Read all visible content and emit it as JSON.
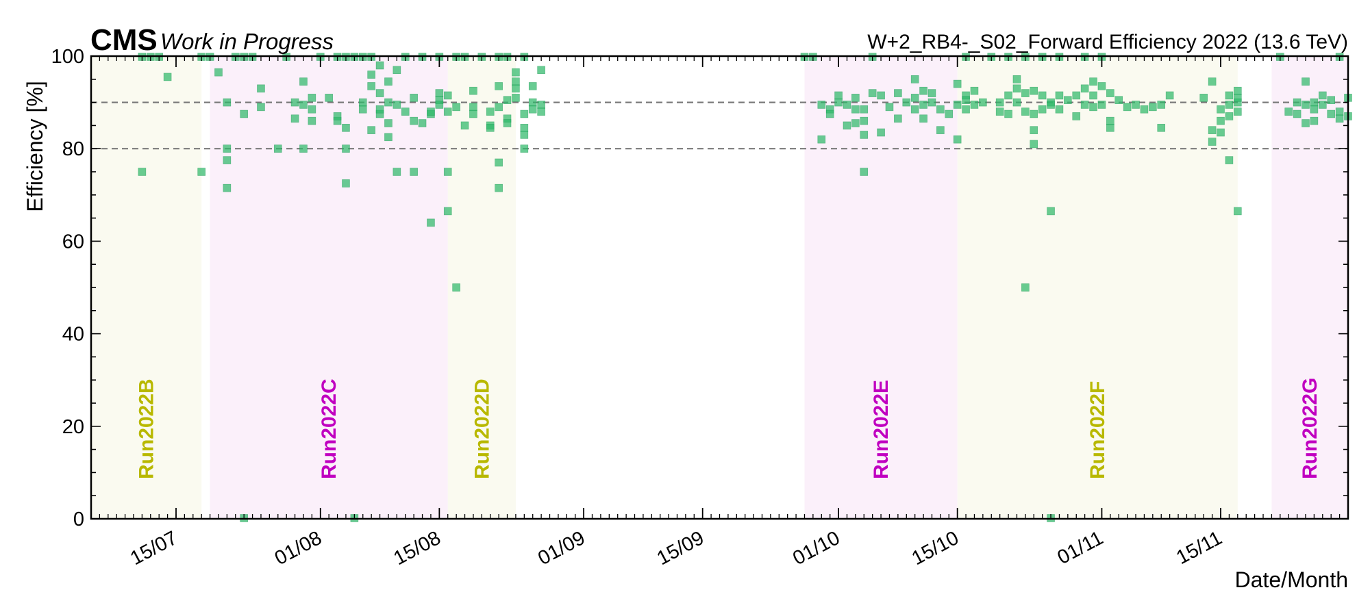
{
  "header": {
    "experiment": "CMS",
    "status": "Work in Progress",
    "title": "W+2_RB4-_S02_Forward Efficiency 2022 (13.6 TeV)"
  },
  "chart_data": {
    "type": "scatter",
    "title": "W+2_RB4-_S02_Forward Efficiency 2022 (13.6 TeV)",
    "xlabel": "Date/Month",
    "ylabel": "Efficiency [%]",
    "xlim": [
      "2022-07-05",
      "2022-11-30"
    ],
    "ylim": [
      0,
      100
    ],
    "x_ticks": [
      {
        "date": "2022-07-15",
        "label": "15/07"
      },
      {
        "date": "2022-08-01",
        "label": "01/08"
      },
      {
        "date": "2022-08-15",
        "label": "15/08"
      },
      {
        "date": "2022-09-01",
        "label": "01/09"
      },
      {
        "date": "2022-09-15",
        "label": "15/09"
      },
      {
        "date": "2022-10-01",
        "label": "01/10"
      },
      {
        "date": "2022-10-15",
        "label": "15/10"
      },
      {
        "date": "2022-11-01",
        "label": "01/11"
      },
      {
        "date": "2022-11-15",
        "label": "15/11"
      }
    ],
    "y_ticks": [
      0,
      20,
      40,
      60,
      80,
      100
    ],
    "reference_lines": [
      90,
      80
    ],
    "colors": {
      "marker": "#2fb86a",
      "era_yellow_band": "#fafaf0",
      "era_magenta_band": "#fbf0fa",
      "era_yellow_text": "#b8b800",
      "era_magenta_text": "#c000c0",
      "reference_line": "#7a7a7a"
    },
    "eras": [
      {
        "label": "Run2022B",
        "start": "2022-07-05",
        "end": "2022-07-18",
        "color": "yellow"
      },
      {
        "label": "Run2022C",
        "start": "2022-07-19",
        "end": "2022-08-16",
        "color": "magenta"
      },
      {
        "label": "Run2022D",
        "start": "2022-08-16",
        "end": "2022-08-24",
        "color": "yellow"
      },
      {
        "label": "Run2022E",
        "start": "2022-09-27",
        "end": "2022-10-15",
        "color": "magenta"
      },
      {
        "label": "Run2022F",
        "start": "2022-10-15",
        "end": "2022-11-17",
        "color": "yellow"
      },
      {
        "label": "Run2022G",
        "start": "2022-11-21",
        "end": "2022-11-30",
        "color": "magenta"
      }
    ],
    "series": [
      {
        "points": [
          [
            "2022-07-11",
            100
          ],
          [
            "2022-07-11",
            75
          ],
          [
            "2022-07-12",
            100
          ],
          [
            "2022-07-13",
            100
          ],
          [
            "2022-07-14",
            95.5
          ],
          [
            "2022-07-18",
            100
          ],
          [
            "2022-07-18",
            75
          ],
          [
            "2022-07-19",
            100
          ],
          [
            "2022-07-20",
            96.5
          ],
          [
            "2022-07-21",
            90
          ],
          [
            "2022-07-21",
            80
          ],
          [
            "2022-07-21",
            77.5
          ],
          [
            "2022-07-21",
            71.5
          ],
          [
            "2022-07-22",
            100
          ],
          [
            "2022-07-23",
            0
          ],
          [
            "2022-07-23",
            87.5
          ],
          [
            "2022-07-23",
            100
          ],
          [
            "2022-07-24",
            100
          ],
          [
            "2022-07-25",
            93
          ],
          [
            "2022-07-25",
            89
          ],
          [
            "2022-07-27",
            80
          ],
          [
            "2022-07-28",
            100
          ],
          [
            "2022-07-29",
            90
          ],
          [
            "2022-07-29",
            86.5
          ],
          [
            "2022-07-30",
            80
          ],
          [
            "2022-07-30",
            89.5
          ],
          [
            "2022-07-30",
            94.5
          ],
          [
            "2022-07-31",
            88.5
          ],
          [
            "2022-07-31",
            86
          ],
          [
            "2022-07-31",
            91
          ],
          [
            "2022-08-01",
            100
          ],
          [
            "2022-08-02",
            91
          ],
          [
            "2022-08-03",
            86
          ],
          [
            "2022-08-03",
            87
          ],
          [
            "2022-08-03",
            100
          ],
          [
            "2022-08-04",
            84.5
          ],
          [
            "2022-08-04",
            72.5
          ],
          [
            "2022-08-04",
            80
          ],
          [
            "2022-08-04",
            100
          ],
          [
            "2022-08-05",
            100
          ],
          [
            "2022-08-05",
            0
          ],
          [
            "2022-08-06",
            88.5
          ],
          [
            "2022-08-06",
            90
          ],
          [
            "2022-08-06",
            100
          ],
          [
            "2022-08-07",
            96
          ],
          [
            "2022-08-07",
            93.5
          ],
          [
            "2022-08-07",
            84
          ],
          [
            "2022-08-07",
            100
          ],
          [
            "2022-08-08",
            87.5
          ],
          [
            "2022-08-08",
            88.5
          ],
          [
            "2022-08-08",
            92
          ],
          [
            "2022-08-08",
            98
          ],
          [
            "2022-08-09",
            94.5
          ],
          [
            "2022-08-09",
            85.5
          ],
          [
            "2022-08-09",
            82.5
          ],
          [
            "2022-08-09",
            90
          ],
          [
            "2022-08-10",
            97
          ],
          [
            "2022-08-10",
            75
          ],
          [
            "2022-08-10",
            89.5
          ],
          [
            "2022-08-11",
            88
          ],
          [
            "2022-08-11",
            100
          ],
          [
            "2022-08-12",
            86
          ],
          [
            "2022-08-12",
            75
          ],
          [
            "2022-08-12",
            91
          ],
          [
            "2022-08-13",
            85.5
          ],
          [
            "2022-08-13",
            100
          ],
          [
            "2022-08-14",
            64
          ],
          [
            "2022-08-14",
            87.5
          ],
          [
            "2022-08-14",
            88
          ],
          [
            "2022-08-15",
            92
          ],
          [
            "2022-08-15",
            90.5
          ],
          [
            "2022-08-15",
            89.5
          ],
          [
            "2022-08-15",
            100
          ],
          [
            "2022-08-16",
            91.5
          ],
          [
            "2022-08-16",
            88
          ],
          [
            "2022-08-16",
            66.5
          ],
          [
            "2022-08-16",
            75
          ],
          [
            "2022-08-17",
            50
          ],
          [
            "2022-08-17",
            89
          ],
          [
            "2022-08-17",
            100
          ],
          [
            "2022-08-18",
            85
          ],
          [
            "2022-08-18",
            100
          ],
          [
            "2022-08-19",
            92.5
          ],
          [
            "2022-08-19",
            89
          ],
          [
            "2022-08-19",
            87.5
          ],
          [
            "2022-08-20",
            100
          ],
          [
            "2022-08-21",
            85
          ],
          [
            "2022-08-21",
            84.5
          ],
          [
            "2022-08-21",
            88
          ],
          [
            "2022-08-22",
            100
          ],
          [
            "2022-08-22",
            71.5
          ],
          [
            "2022-08-22",
            77
          ],
          [
            "2022-08-22",
            89
          ],
          [
            "2022-08-22",
            93.5
          ],
          [
            "2022-08-23",
            90.5
          ],
          [
            "2022-08-23",
            86.5
          ],
          [
            "2022-08-23",
            85.5
          ],
          [
            "2022-08-23",
            100
          ],
          [
            "2022-08-24",
            96.5
          ],
          [
            "2022-08-24",
            94.5
          ],
          [
            "2022-08-24",
            93
          ],
          [
            "2022-08-24",
            91
          ],
          [
            "2022-08-25",
            87.5
          ],
          [
            "2022-08-25",
            84.5
          ],
          [
            "2022-08-25",
            83
          ],
          [
            "2022-08-25",
            80
          ],
          [
            "2022-08-25",
            100
          ],
          [
            "2022-08-26",
            90
          ],
          [
            "2022-08-26",
            88.5
          ],
          [
            "2022-08-26",
            93.5
          ],
          [
            "2022-08-27",
            89.5
          ],
          [
            "2022-08-27",
            88
          ],
          [
            "2022-08-27",
            97
          ],
          [
            "2022-09-27",
            100
          ],
          [
            "2022-09-28",
            100
          ],
          [
            "2022-09-29",
            89.5
          ],
          [
            "2022-09-29",
            82
          ],
          [
            "2022-09-30",
            88.5
          ],
          [
            "2022-09-30",
            87.5
          ],
          [
            "2022-10-01",
            90
          ],
          [
            "2022-10-01",
            91.5
          ],
          [
            "2022-10-02",
            85
          ],
          [
            "2022-10-02",
            89.5
          ],
          [
            "2022-10-03",
            91
          ],
          [
            "2022-10-03",
            88.5
          ],
          [
            "2022-10-03",
            85.5
          ],
          [
            "2022-10-04",
            88.5
          ],
          [
            "2022-10-04",
            83
          ],
          [
            "2022-10-04",
            75
          ],
          [
            "2022-10-04",
            86
          ],
          [
            "2022-10-05",
            92
          ],
          [
            "2022-10-05",
            100
          ],
          [
            "2022-10-06",
            91.5
          ],
          [
            "2022-10-06",
            83.5
          ],
          [
            "2022-10-07",
            89
          ],
          [
            "2022-10-08",
            92
          ],
          [
            "2022-10-08",
            86.5
          ],
          [
            "2022-10-09",
            90
          ],
          [
            "2022-10-10",
            91
          ],
          [
            "2022-10-10",
            88.5
          ],
          [
            "2022-10-10",
            95
          ],
          [
            "2022-10-11",
            92.5
          ],
          [
            "2022-10-11",
            86.5
          ],
          [
            "2022-10-11",
            89.5
          ],
          [
            "2022-10-12",
            92
          ],
          [
            "2022-10-12",
            90
          ],
          [
            "2022-10-13",
            84
          ],
          [
            "2022-10-13",
            88.5
          ],
          [
            "2022-10-14",
            87.5
          ],
          [
            "2022-10-15",
            89.5
          ],
          [
            "2022-10-15",
            94
          ],
          [
            "2022-10-15",
            82
          ],
          [
            "2022-10-16",
            100
          ],
          [
            "2022-10-16",
            91.5
          ],
          [
            "2022-10-16",
            90.5
          ],
          [
            "2022-10-16",
            88.5
          ],
          [
            "2022-10-17",
            92.5
          ],
          [
            "2022-10-17",
            89.5
          ],
          [
            "2022-10-18",
            90
          ],
          [
            "2022-10-19",
            100
          ],
          [
            "2022-10-20",
            88
          ],
          [
            "2022-10-20",
            90
          ],
          [
            "2022-10-21",
            87.5
          ],
          [
            "2022-10-21",
            91.5
          ],
          [
            "2022-10-21",
            100
          ],
          [
            "2022-10-22",
            90
          ],
          [
            "2022-10-22",
            93
          ],
          [
            "2022-10-22",
            95
          ],
          [
            "2022-10-23",
            92
          ],
          [
            "2022-10-23",
            88
          ],
          [
            "2022-10-23",
            100
          ],
          [
            "2022-10-23",
            50
          ],
          [
            "2022-10-24",
            87.5
          ],
          [
            "2022-10-24",
            84
          ],
          [
            "2022-10-24",
            81
          ],
          [
            "2022-10-24",
            92.5
          ],
          [
            "2022-10-25",
            91.5
          ],
          [
            "2022-10-25",
            88.5
          ],
          [
            "2022-10-25",
            100
          ],
          [
            "2022-10-26",
            0
          ],
          [
            "2022-10-26",
            90
          ],
          [
            "2022-10-26",
            66.5
          ],
          [
            "2022-10-26",
            89.5
          ],
          [
            "2022-10-27",
            91.5
          ],
          [
            "2022-10-27",
            88.5
          ],
          [
            "2022-10-27",
            100
          ],
          [
            "2022-10-28",
            90.5
          ],
          [
            "2022-10-29",
            91.5
          ],
          [
            "2022-10-29",
            87
          ],
          [
            "2022-10-30",
            93
          ],
          [
            "2022-10-30",
            89.5
          ],
          [
            "2022-10-30",
            100
          ],
          [
            "2022-10-31",
            89
          ],
          [
            "2022-10-31",
            94.5
          ],
          [
            "2022-10-31",
            91.5
          ],
          [
            "2022-11-01",
            89.5
          ],
          [
            "2022-11-01",
            93.5
          ],
          [
            "2022-11-01",
            100
          ],
          [
            "2022-11-02",
            92
          ],
          [
            "2022-11-02",
            84.5
          ],
          [
            "2022-11-02",
            86
          ],
          [
            "2022-11-03",
            90.5
          ],
          [
            "2022-11-04",
            89
          ],
          [
            "2022-11-05",
            89.5
          ],
          [
            "2022-11-06",
            88.5
          ],
          [
            "2022-11-07",
            89
          ],
          [
            "2022-11-08",
            89.5
          ],
          [
            "2022-11-08",
            84.5
          ],
          [
            "2022-11-09",
            91.5
          ],
          [
            "2022-11-13",
            91
          ],
          [
            "2022-11-14",
            94.5
          ],
          [
            "2022-11-14",
            84
          ],
          [
            "2022-11-14",
            81.5
          ],
          [
            "2022-11-15",
            88.5
          ],
          [
            "2022-11-15",
            86
          ],
          [
            "2022-11-15",
            83.5
          ],
          [
            "2022-11-16",
            89.5
          ],
          [
            "2022-11-16",
            91.5
          ],
          [
            "2022-11-16",
            77.5
          ],
          [
            "2022-11-16",
            87
          ],
          [
            "2022-11-17",
            90
          ],
          [
            "2022-11-17",
            92.5
          ],
          [
            "2022-11-17",
            88
          ],
          [
            "2022-11-17",
            66.5
          ],
          [
            "2022-11-17",
            91
          ],
          [
            "2022-11-22",
            100
          ],
          [
            "2022-11-23",
            88
          ],
          [
            "2022-11-24",
            87.5
          ],
          [
            "2022-11-24",
            90
          ],
          [
            "2022-11-25",
            94.5
          ],
          [
            "2022-11-25",
            89.5
          ],
          [
            "2022-11-25",
            85.5
          ],
          [
            "2022-11-26",
            90
          ],
          [
            "2022-11-26",
            88.5
          ],
          [
            "2022-11-26",
            86
          ],
          [
            "2022-11-27",
            91.5
          ],
          [
            "2022-11-27",
            89.5
          ],
          [
            "2022-11-28",
            87.5
          ],
          [
            "2022-11-28",
            90.5
          ],
          [
            "2022-11-29",
            88
          ],
          [
            "2022-11-29",
            86.5
          ],
          [
            "2022-11-29",
            100
          ],
          [
            "2022-11-30",
            91
          ],
          [
            "2022-11-30",
            87
          ]
        ]
      }
    ]
  }
}
